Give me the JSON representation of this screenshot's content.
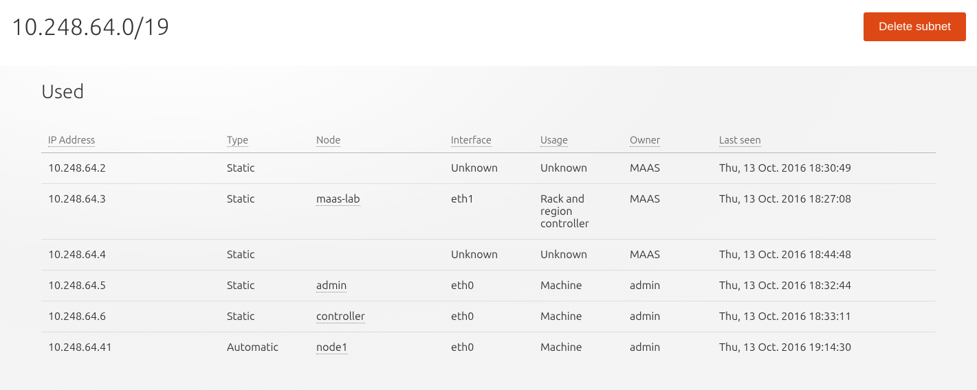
{
  "header": {
    "page_title": "10.248.64.0/19",
    "delete_button_label": "Delete subnet"
  },
  "section": {
    "title": "Used"
  },
  "table": {
    "columns": [
      {
        "key": "ip",
        "label": "IP Address"
      },
      {
        "key": "type",
        "label": "Type"
      },
      {
        "key": "node",
        "label": "Node"
      },
      {
        "key": "interface",
        "label": "Interface"
      },
      {
        "key": "usage",
        "label": "Usage"
      },
      {
        "key": "owner",
        "label": "Owner"
      },
      {
        "key": "last_seen",
        "label": "Last seen"
      }
    ],
    "rows": [
      {
        "ip": "10.248.64.2",
        "type": "Static",
        "node": "",
        "node_is_link": false,
        "interface": "Unknown",
        "usage": "Unknown",
        "owner": "MAAS",
        "last_seen": "Thu, 13 Oct. 2016 18:30:49"
      },
      {
        "ip": "10.248.64.3",
        "type": "Static",
        "node": "maas-lab",
        "node_is_link": true,
        "interface": "eth1",
        "usage": "Rack and region controller",
        "owner": "MAAS",
        "last_seen": "Thu, 13 Oct. 2016 18:27:08"
      },
      {
        "ip": "10.248.64.4",
        "type": "Static",
        "node": "",
        "node_is_link": false,
        "interface": "Unknown",
        "usage": "Unknown",
        "owner": "MAAS",
        "last_seen": "Thu, 13 Oct. 2016 18:44:48"
      },
      {
        "ip": "10.248.64.5",
        "type": "Static",
        "node": "admin",
        "node_is_link": true,
        "interface": "eth0",
        "usage": "Machine",
        "owner": "admin",
        "last_seen": "Thu, 13 Oct. 2016 18:32:44"
      },
      {
        "ip": "10.248.64.6",
        "type": "Static",
        "node": "controller",
        "node_is_link": true,
        "interface": "eth0",
        "usage": "Machine",
        "owner": "admin",
        "last_seen": "Thu, 13 Oct. 2016 18:33:11"
      },
      {
        "ip": "10.248.64.41",
        "type": "Automatic",
        "node": "node1",
        "node_is_link": true,
        "interface": "eth0",
        "usage": "Machine",
        "owner": "admin",
        "last_seen": "Thu, 13 Oct. 2016 19:14:30"
      }
    ]
  },
  "colors": {
    "accent": "#dd4814",
    "header_bg": "#ffffff",
    "content_bg": "#f4f4f4",
    "border": "#dddddd",
    "header_border": "#b8b8b8",
    "text": "#333333",
    "muted": "#666666"
  }
}
